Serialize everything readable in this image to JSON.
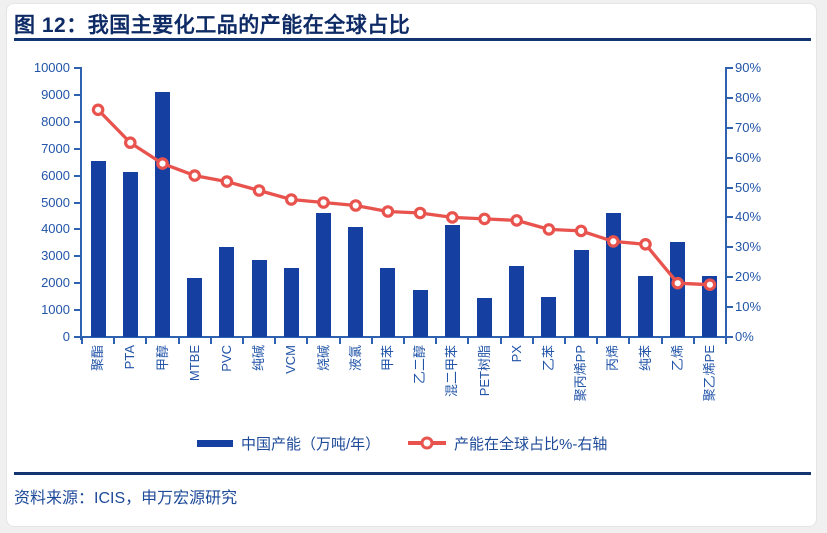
{
  "header": {
    "title": "图 12：我国主要化工品的产能在全球占比"
  },
  "legend": {
    "bars_label": "中国产能（万吨/年）",
    "line_label": "产能在全球占比%-右轴"
  },
  "footer": {
    "source": "资料来源：ICIS，申万宏源研究"
  },
  "colors": {
    "bar": "#153FA0",
    "line": "#E8534E",
    "axis": "#2E62B0",
    "axis_label": "#2255A8",
    "title": "#0E2B66",
    "rule": "#123471",
    "legend_text": "#1D4A99",
    "page_bg": "#F0F0F0",
    "card_bg": "#FFFFFF"
  },
  "chart_data": {
    "type": "combo-bar-line",
    "title": "图 12：我国主要化工品的产能在全球占比",
    "categories": [
      "聚酯",
      "PTA",
      "甲醇",
      "MTBE",
      "PVC",
      "纯碱",
      "VCM",
      "烧碱",
      "液氯",
      "甲苯",
      "乙二醇",
      "混二甲苯",
      "PET树脂",
      "PX",
      "乙苯",
      "聚丙烯PP",
      "丙烯",
      "纯苯",
      "乙烯",
      "聚乙烯PE"
    ],
    "series": [
      {
        "name": "中国产能（万吨/年）",
        "type": "bar",
        "axis": "left",
        "values": [
          6550,
          6150,
          9100,
          2200,
          3350,
          2850,
          2550,
          4600,
          4100,
          2550,
          1750,
          4150,
          1450,
          2650,
          1500,
          3250,
          4600,
          2250,
          3550,
          2250
        ]
      },
      {
        "name": "产能在全球占比%-右轴",
        "type": "line",
        "axis": "right",
        "values": [
          76,
          65,
          58,
          54,
          52,
          49,
          46,
          45,
          44,
          42,
          41.5,
          40,
          39.5,
          39,
          36,
          35.5,
          32,
          31,
          18,
          17.5
        ]
      }
    ],
    "left_axis": {
      "min": 0,
      "max": 10000,
      "step": 1000,
      "tick_labels": [
        "0",
        "1000",
        "2000",
        "3000",
        "4000",
        "5000",
        "6000",
        "7000",
        "8000",
        "9000",
        "10000"
      ]
    },
    "right_axis": {
      "min": 0,
      "max": 90,
      "step": 10,
      "tick_labels": [
        "0%",
        "10%",
        "20%",
        "30%",
        "40%",
        "50%",
        "60%",
        "70%",
        "80%",
        "90%"
      ]
    },
    "grid": false,
    "legend_position": "bottom"
  }
}
